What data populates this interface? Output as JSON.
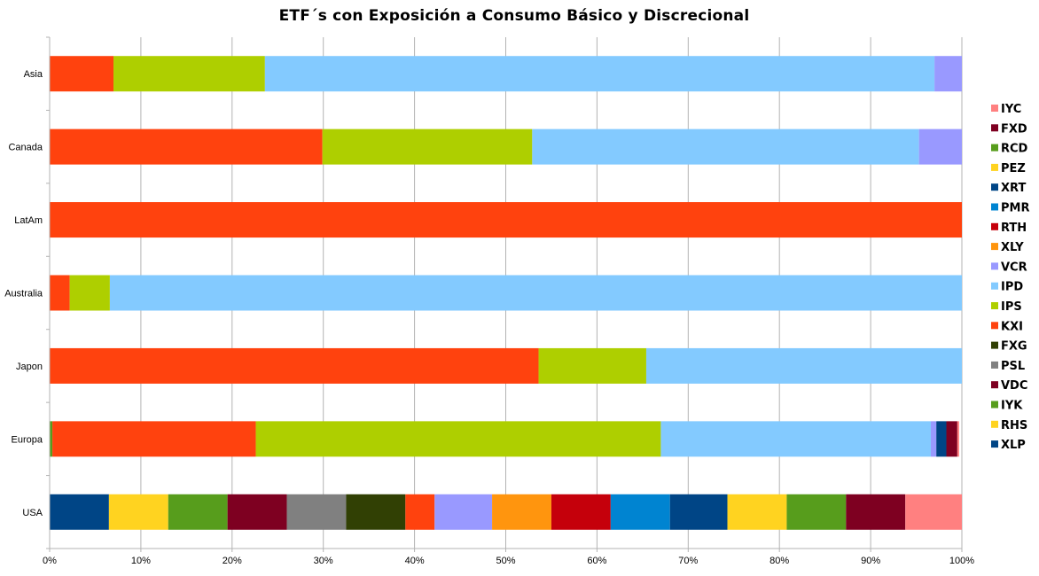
{
  "chart_data": {
    "type": "bar",
    "orientation": "horizontal",
    "stacked": "percent",
    "title": "ETF´s con Exposición a Consumo Básico y Discrecional",
    "xlabel": "",
    "ylabel": "",
    "xlim": [
      0,
      100
    ],
    "x_ticks": [
      "0%",
      "10%",
      "20%",
      "30%",
      "40%",
      "50%",
      "60%",
      "70%",
      "80%",
      "90%",
      "100%"
    ],
    "grid": true,
    "legend_position": "right",
    "categories": [
      "Asia",
      "Canada",
      "LatAm",
      "Australia",
      "Japon",
      "Europa",
      "USA"
    ],
    "series": [
      {
        "name": "XLP",
        "color": "#004586",
        "values": [
          0,
          0,
          0,
          0,
          0,
          0,
          6.5
        ]
      },
      {
        "name": "RHS",
        "color": "#ffd320",
        "values": [
          0,
          0,
          0,
          0,
          0,
          0,
          6.5
        ]
      },
      {
        "name": "IYK",
        "color": "#579d1c",
        "values": [
          0,
          0,
          0,
          0,
          0,
          0,
          6.5
        ]
      },
      {
        "name": "VDC",
        "color": "#7e0021",
        "values": [
          0,
          0,
          0,
          0,
          0,
          0,
          6.5
        ]
      },
      {
        "name": "PSL",
        "color": "#808080",
        "values": [
          0,
          0,
          0,
          0,
          0,
          0,
          6.5
        ]
      },
      {
        "name": "FXG",
        "color": "#314004",
        "values": [
          0,
          0,
          0,
          0,
          0,
          0,
          6.5
        ]
      },
      {
        "name": "KXI",
        "color": "#ff420e",
        "values": [
          7,
          29.9,
          100,
          2.2,
          53.6,
          22.3,
          3.2
        ]
      },
      {
        "name": "IPS",
        "color": "#aecf00",
        "values": [
          16.6,
          23,
          0,
          4.4,
          11.8,
          44.4,
          0
        ]
      },
      {
        "name": "IPD",
        "color": "#83caff",
        "values": [
          73.4,
          42.4,
          0,
          93.4,
          34.6,
          29.6,
          0
        ]
      },
      {
        "name": "VCR",
        "color": "#9999ff",
        "values": [
          3,
          4.7,
          0,
          0,
          0,
          0.6,
          6.3
        ]
      },
      {
        "name": "XLY",
        "color": "#ff950e",
        "values": [
          0,
          0,
          0,
          0,
          0,
          0,
          6.5
        ]
      },
      {
        "name": "RTH",
        "color": "#c5000b",
        "values": [
          0,
          0,
          0,
          0,
          0,
          0,
          6.5
        ]
      },
      {
        "name": "PMR",
        "color": "#0084d1",
        "values": [
          0,
          0,
          0,
          0,
          0,
          0,
          6.5
        ]
      },
      {
        "name": "XRT",
        "color": "#004586",
        "values": [
          0,
          0,
          0,
          0,
          0,
          1.1,
          6.3
        ]
      },
      {
        "name": "PEZ",
        "color": "#ffd320",
        "values": [
          0,
          0,
          0,
          0,
          0,
          0,
          6.5
        ]
      },
      {
        "name": "RCD",
        "color": "#579d1c",
        "values": [
          0,
          0,
          0,
          0,
          0,
          0,
          6.5
        ]
      },
      {
        "name": "FXD",
        "color": "#7e0021",
        "values": [
          0,
          0,
          0,
          0,
          0,
          1.2,
          6.5
        ]
      },
      {
        "name": "IYC",
        "color": "#ff8080",
        "values": [
          0,
          0,
          0,
          0,
          0,
          0.2,
          6.4
        ]
      }
    ],
    "extra_segments": [
      {
        "category": "Europa",
        "series": "IYK",
        "value": 0.3
      }
    ]
  }
}
